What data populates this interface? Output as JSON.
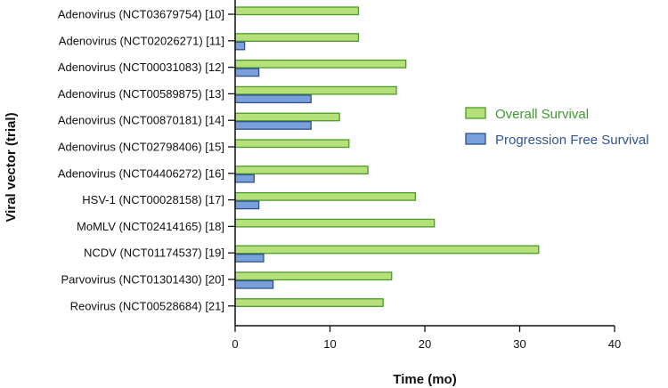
{
  "chart_data": {
    "type": "bar",
    "orientation": "horizontal",
    "xlabel": "Time (mo)",
    "ylabel": "Viral vector (trial)",
    "xlim": [
      0,
      40
    ],
    "xticks": [
      0,
      10,
      20,
      30,
      40
    ],
    "grid": false,
    "legend_position": "right",
    "categories": [
      "Adenovirus (NCT03679754) [10]",
      "Adenovirus (NCT02026271) [11]",
      "Adenovirus (NCT00031083) [12]",
      "Adenovirus (NCT00589875) [13]",
      "Adenovirus (NCT00870181) [14]",
      "Adenovirus (NCT02798406) [15]",
      "Adenovirus (NCT04406272) [16]",
      "HSV-1 (NCT00028158) [17]",
      "MoMLV (NCT02414165) [18]",
      "NCDV (NCT01174537) [19]",
      "Parvovirus (NCT01301430) [20]",
      "Reovirus (NCT00528684) [21]"
    ],
    "series": [
      {
        "name": "Overall Survival",
        "color": "#b6e07a",
        "edge_color": "#4c9a2a",
        "text_color": "#3f9a2e",
        "values": [
          13,
          13,
          18,
          17,
          11,
          12,
          14,
          19,
          21,
          32,
          16.5,
          15.6
        ]
      },
      {
        "name": "Progression Free Survival",
        "color": "#7aa0dc",
        "edge_color": "#2f4f8f",
        "text_color": "#2f5597",
        "values": [
          0,
          1,
          2.5,
          8,
          8,
          0,
          2,
          2.5,
          0,
          3,
          4,
          0
        ]
      }
    ]
  }
}
